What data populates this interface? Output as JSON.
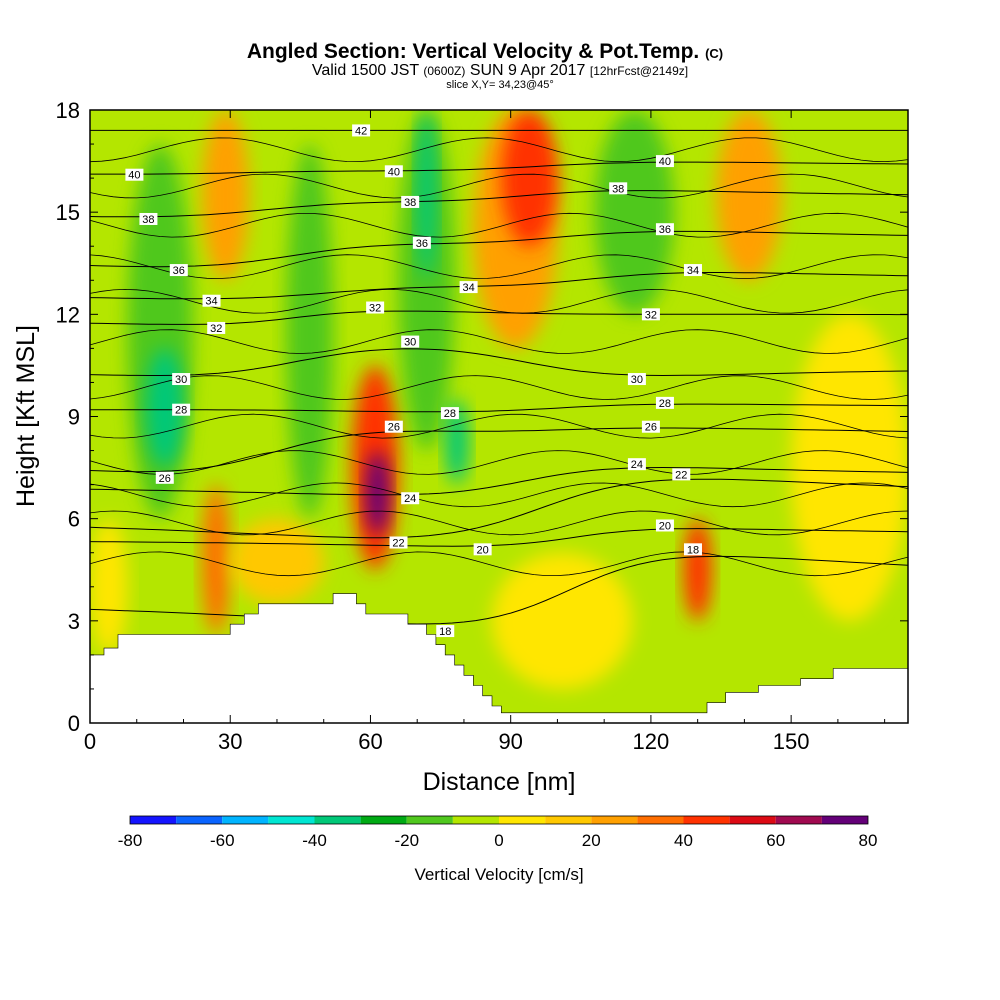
{
  "chart_data": {
    "type": "heatmap",
    "title": "Angled Section: Vertical Velocity & Pot.Temp.",
    "title_unit": "(C)",
    "subtitle_parts": [
      "Valid 1500 JST ",
      "(0600Z)",
      " SUN 9 Apr 2017 ",
      "[12hrFcst@2149z]"
    ],
    "slice_label": "slice X,Y= 34,23@45°",
    "xlabel": "Distance [nm]",
    "ylabel": "Height [Kft MSL]",
    "xlim": [
      0,
      175
    ],
    "ylim": [
      0,
      18
    ],
    "x_ticks": [
      0,
      30,
      60,
      90,
      120,
      150
    ],
    "y_ticks": [
      0,
      3,
      6,
      9,
      12,
      15,
      18
    ],
    "colorbar": {
      "label": "Vertical Velocity [cm/s]",
      "ticks": [
        -80,
        -60,
        -40,
        -20,
        0,
        20,
        40,
        60,
        80
      ],
      "levels": [
        -80,
        -70,
        -60,
        -50,
        -40,
        -30,
        -20,
        -10,
        0,
        10,
        20,
        30,
        40,
        50,
        60,
        70,
        80
      ],
      "colors": [
        "#1414ff",
        "#0a64ff",
        "#00b4ff",
        "#00e6d2",
        "#00c878",
        "#00aa14",
        "#50c81e",
        "#b4e600",
        "#ffe600",
        "#ffc800",
        "#ffa000",
        "#ff6e00",
        "#ff3200",
        "#dc0a14",
        "#a00a50",
        "#640078"
      ]
    },
    "vertical_velocity_cells": [
      {
        "x": [
          0,
          8
        ],
        "y": [
          2,
          6
        ],
        "w": 0
      },
      {
        "x": [
          8,
          22
        ],
        "y": [
          6,
          17
        ],
        "w": -15
      },
      {
        "x": [
          12,
          20
        ],
        "y": [
          7.5,
          11
        ],
        "w": -35
      },
      {
        "x": [
          24,
          30
        ],
        "y": [
          2.6,
          7
        ],
        "w": 35
      },
      {
        "x": [
          30,
          50
        ],
        "y": [
          3.5,
          6
        ],
        "w": 15
      },
      {
        "x": [
          24,
          34
        ],
        "y": [
          13,
          18
        ],
        "w": 25
      },
      {
        "x": [
          42,
          52
        ],
        "y": [
          6,
          17
        ],
        "w": -12
      },
      {
        "x": [
          56,
          66
        ],
        "y": [
          4.5,
          10.5
        ],
        "w": 45
      },
      {
        "x": [
          59,
          64
        ],
        "y": [
          5.5,
          8
        ],
        "w": 75
      },
      {
        "x": [
          66,
          78
        ],
        "y": [
          8,
          18
        ],
        "w": -18
      },
      {
        "x": [
          70,
          74
        ],
        "y": [
          13,
          18
        ],
        "w": -35
      },
      {
        "x": [
          76,
          81
        ],
        "y": [
          7,
          9.5
        ],
        "w": -38
      },
      {
        "x": [
          82,
          100
        ],
        "y": [
          11,
          18
        ],
        "w": 28
      },
      {
        "x": [
          88,
          100
        ],
        "y": [
          14,
          18
        ],
        "w": 45
      },
      {
        "x": [
          108,
          125
        ],
        "y": [
          12,
          18
        ],
        "w": -14
      },
      {
        "x": [
          127,
          133
        ],
        "y": [
          3,
          6
        ],
        "w": 40
      },
      {
        "x": [
          134,
          148
        ],
        "y": [
          13,
          18
        ],
        "w": 22
      },
      {
        "x": [
          150,
          175
        ],
        "y": [
          3,
          12
        ],
        "w": 2
      },
      {
        "x": [
          86,
          116
        ],
        "y": [
          1,
          5
        ],
        "w": 3
      }
    ],
    "terrain_top": [
      [
        0,
        2.0
      ],
      [
        3,
        2.0
      ],
      [
        3,
        2.2
      ],
      [
        6,
        2.2
      ],
      [
        6,
        2.6
      ],
      [
        30,
        2.6
      ],
      [
        30,
        2.9
      ],
      [
        33,
        2.9
      ],
      [
        33,
        3.2
      ],
      [
        36,
        3.2
      ],
      [
        36,
        3.5
      ],
      [
        52,
        3.5
      ],
      [
        52,
        3.8
      ],
      [
        57,
        3.8
      ],
      [
        57,
        3.5
      ],
      [
        59,
        3.5
      ],
      [
        59,
        3.2
      ],
      [
        68,
        3.2
      ],
      [
        68,
        2.9
      ],
      [
        72,
        2.9
      ],
      [
        72,
        2.6
      ],
      [
        74,
        2.6
      ],
      [
        74,
        2.3
      ],
      [
        76,
        2.3
      ],
      [
        76,
        2.0
      ],
      [
        78,
        2.0
      ],
      [
        78,
        1.7
      ],
      [
        80,
        1.7
      ],
      [
        80,
        1.4
      ],
      [
        82,
        1.4
      ],
      [
        82,
        1.1
      ],
      [
        84,
        1.1
      ],
      [
        84,
        0.8
      ],
      [
        86,
        0.8
      ],
      [
        86,
        0.5
      ],
      [
        88,
        0.5
      ],
      [
        88,
        0.3
      ],
      [
        132,
        0.3
      ],
      [
        132,
        0.6
      ],
      [
        136,
        0.6
      ],
      [
        136,
        0.9
      ],
      [
        143,
        0.9
      ],
      [
        143,
        1.1
      ],
      [
        152,
        1.1
      ],
      [
        152,
        1.3
      ],
      [
        159,
        1.3
      ],
      [
        159,
        1.6
      ],
      [
        175,
        1.6
      ]
    ],
    "contour_labels": [
      {
        "text": "40",
        "x": 9.5,
        "y": 16.1
      },
      {
        "text": "38",
        "x": 12.5,
        "y": 14.8
      },
      {
        "text": "36",
        "x": 19,
        "y": 13.3
      },
      {
        "text": "34",
        "x": 26,
        "y": 12.4
      },
      {
        "text": "32",
        "x": 27,
        "y": 11.6
      },
      {
        "text": "30",
        "x": 19.5,
        "y": 10.1
      },
      {
        "text": "28",
        "x": 19.5,
        "y": 9.2
      },
      {
        "text": "26",
        "x": 16,
        "y": 7.2
      },
      {
        "text": "42",
        "x": 58,
        "y": 17.4
      },
      {
        "text": "40",
        "x": 65,
        "y": 16.2
      },
      {
        "text": "38",
        "x": 68.5,
        "y": 15.3
      },
      {
        "text": "36",
        "x": 71,
        "y": 14.1
      },
      {
        "text": "34",
        "x": 81,
        "y": 12.8
      },
      {
        "text": "32",
        "x": 61,
        "y": 12.2
      },
      {
        "text": "30",
        "x": 68.5,
        "y": 11.2
      },
      {
        "text": "28",
        "x": 77,
        "y": 9.1
      },
      {
        "text": "26",
        "x": 65,
        "y": 8.7
      },
      {
        "text": "24",
        "x": 68.5,
        "y": 6.6
      },
      {
        "text": "22",
        "x": 66,
        "y": 5.3
      },
      {
        "text": "20",
        "x": 84,
        "y": 5.1
      },
      {
        "text": "18",
        "x": 76,
        "y": 2.7
      },
      {
        "text": "40",
        "x": 123,
        "y": 16.5
      },
      {
        "text": "38",
        "x": 113,
        "y": 15.7
      },
      {
        "text": "36",
        "x": 123,
        "y": 14.5
      },
      {
        "text": "34",
        "x": 129,
        "y": 13.3
      },
      {
        "text": "32",
        "x": 120,
        "y": 12.0
      },
      {
        "text": "30",
        "x": 117,
        "y": 10.1
      },
      {
        "text": "28",
        "x": 123,
        "y": 9.4
      },
      {
        "text": "26",
        "x": 120,
        "y": 8.7
      },
      {
        "text": "24",
        "x": 117,
        "y": 7.6
      },
      {
        "text": "22",
        "x": 126.5,
        "y": 7.3
      },
      {
        "text": "20",
        "x": 123,
        "y": 5.8
      },
      {
        "text": "18",
        "x": 129,
        "y": 5.1
      }
    ]
  }
}
